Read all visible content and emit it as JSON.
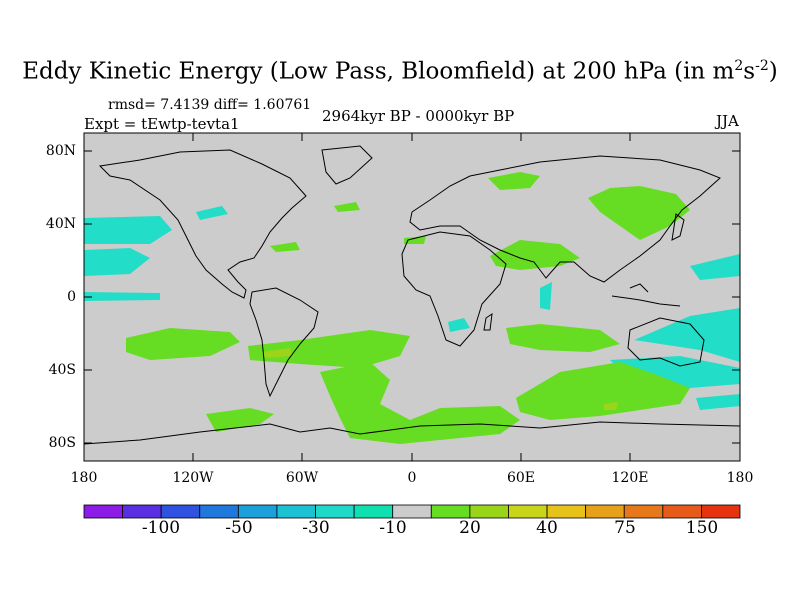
{
  "title": {
    "main": "Eddy Kinetic Energy (Low Pass, Bloomfield) at 200 hPa (in m",
    "sup1": "2",
    "mid": "s",
    "sup2": "-2",
    "close": ")"
  },
  "stats": "rmsd= 7.4139  diff= 1.60761",
  "experiment": "Expt = tEwtp-tevta1",
  "period": "2964kyr BP - 0000kyr BP",
  "season": "JJA",
  "lat_labels": [
    "80N",
    "40N",
    "0",
    "40S",
    "80S"
  ],
  "lon_labels": [
    "180",
    "120W",
    "60W",
    "0",
    "60E",
    "120E",
    "180"
  ],
  "colorbar": {
    "colors": [
      "#8c1ce6",
      "#5a2fe0",
      "#2f52e0",
      "#1f78dc",
      "#1ca0dc",
      "#1cc2d4",
      "#20d8c8",
      "#10e0b0",
      "#cccccc",
      "#66dd22",
      "#99d41a",
      "#c8d41a",
      "#e6c21a",
      "#e6a01a",
      "#e6781a",
      "#e65a1a",
      "#e6320f"
    ],
    "labels": [
      "-100",
      "-50",
      "-30",
      "-10",
      "20",
      "40",
      "75",
      "150"
    ]
  },
  "legend_colors": {
    "positive": "#66dd22",
    "negative": "#22ddc8",
    "neutral": "#cccccc",
    "weak_positive": "#9cd41a"
  }
}
